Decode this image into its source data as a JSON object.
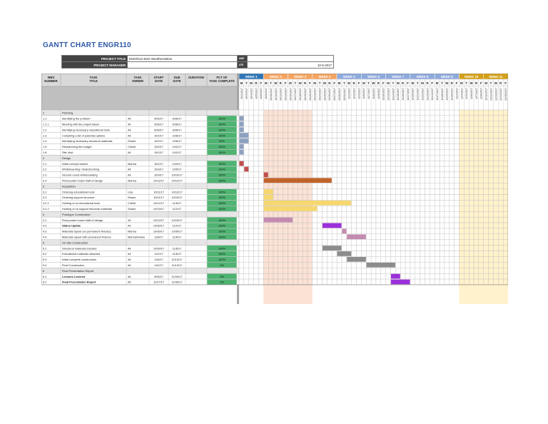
{
  "title": "GANTT CHART ENGR110",
  "project": {
    "title_label": "PROJECT TITLE",
    "title_value": "ENGR110 BoG Weatherstation",
    "manager_label": "PROJECT MANAGER",
    "manager_value": "",
    "right_label_1": "AME",
    "right_value_1": "",
    "right_label_2": "ATE",
    "right_value_2": "10-5-2017"
  },
  "columns": {
    "wbs": "WBS NUMBER",
    "task": "TASK TITLE",
    "owner": "TASK OWNER",
    "start": "START DATE",
    "due": "DUE DATE",
    "duration": "DURATION",
    "pct": "PCT OF TASK COMPLETE"
  },
  "weeks": [
    "WEEK 1",
    "WEEK 2",
    "WEEK 3",
    "WEEK 4",
    "WEEK 5",
    "WEEK 6",
    "WEEK 7",
    "WEEK 8",
    "WEEK 9",
    "WEEK 10",
    "WEEK 11"
  ],
  "week_colors": [
    "#2e75b6",
    "#f4a460",
    "#f4a460",
    "#f4a460",
    "#8faadc",
    "#8faadc",
    "#8faadc",
    "#8faadc",
    "#8faadc",
    "#d4a017",
    "#d4a017"
  ],
  "week_bgs": [
    "#ffffff",
    "#fbe2d5",
    "#fbe2d5",
    "#ffffff",
    "#ffffff",
    "#ffffff",
    "#ffffff",
    "#ffffff",
    "#ffffff",
    "#fff2cc",
    "#fff2cc"
  ],
  "day_letters": [
    "M",
    "T",
    "W",
    "R",
    "F"
  ],
  "day_dates": [
    "10/2/2017",
    "10/3/2017",
    "10/4/2017",
    "10/5/2017",
    "10/6/2017",
    "10/9/2017",
    "10/10/2017",
    "10/11/2017",
    "10/12/2017",
    "10/13/2017",
    "10/16/2017",
    "10/17/2017",
    "10/18/2017",
    "10/19/2017",
    "10/20/2017",
    "10/23/2017",
    "10/24/2017",
    "10/25/2017",
    "10/26/2017",
    "10/27/2017",
    "10/30/2017",
    "10/31/2017",
    "11/1/2017",
    "11/2/2017",
    "11/3/2017",
    "11/6/2017",
    "11/7/2017",
    "11/8/2017",
    "11/9/2017",
    "11/10/2017",
    "11/13/2017",
    "11/14/2017",
    "11/15/2017",
    "11/16/2017",
    "11/17/2017",
    "11/20/2017",
    "11/21/2017",
    "11/22/2017",
    "11/23/2017",
    "11/24/2017",
    "11/27/2017",
    "11/28/2017",
    "11/29/2017",
    "11/30/2017",
    "12/1/2017",
    "12/4/2017",
    "12/5/2017",
    "12/6/2017",
    "12/7/2017",
    "12/8/2017",
    "12/11/2017",
    "12/12/2017",
    "12/13/2017",
    "12/14/2017",
    "12/15/2017"
  ],
  "rows": [
    {
      "wbs": "1",
      "task": "Planning",
      "owner": "",
      "start": "",
      "due": "",
      "pct": "",
      "phase": true
    },
    {
      "wbs": "1.1",
      "task": "Identifying the problem",
      "owner": "All",
      "start": "9/26/17",
      "due": "9/26/17",
      "pct": "100%",
      "bar": {
        "start": 0,
        "len": 1,
        "color": "#8ea0c0"
      }
    },
    {
      "wbs": "1.1.1",
      "task": "Meeting with the project liason",
      "owner": "All",
      "start": "9/28/17",
      "due": "9/28/17",
      "pct": "100%",
      "bar": {
        "start": 0,
        "len": 1,
        "color": "#8ea0c0"
      }
    },
    {
      "wbs": "1.2",
      "task": "Identifying necessary educational tools",
      "owner": "All",
      "start": "9/28/17",
      "due": "9/28/17",
      "pct": "100%",
      "bar": {
        "start": 0,
        "len": 1,
        "color": "#8ea0c0"
      }
    },
    {
      "wbs": "1.3",
      "task": "Compiling a list of potential options",
      "owner": "All",
      "start": "10/2/17",
      "due": "10/6/17",
      "pct": "100%",
      "bar": {
        "start": 0,
        "len": 2,
        "color": "#8ea0c0"
      }
    },
    {
      "wbs": "1.4",
      "task": "Identifying necessary structural materials",
      "owner": "Shane",
      "start": "10/2/17",
      "due": "10/6/17",
      "pct": "50%",
      "bar": {
        "start": 0,
        "len": 2,
        "color": "#8ea0c0"
      }
    },
    {
      "wbs": "1.5",
      "task": "Researching the budget",
      "owner": "Christi",
      "start": "10/2/17",
      "due": "10/2/17",
      "pct": "100%",
      "bar": {
        "start": 0,
        "len": 1,
        "color": "#8ea0c0"
      }
    },
    {
      "wbs": "1.6",
      "task": "Site Visit",
      "owner": "All",
      "start": "10/2/17",
      "due": "10/2/17",
      "pct": "100%",
      "bar": {
        "start": 0,
        "len": 1,
        "color": "#8ea0c0"
      }
    },
    {
      "wbs": "2",
      "task": "Design",
      "owner": "",
      "start": "",
      "due": "",
      "pct": "",
      "phase": true
    },
    {
      "wbs": "2.1",
      "task": "Initial concept sketch",
      "owner": "Marina",
      "start": "10/2/17",
      "due": "10/3/17",
      "pct": "100%",
      "bar": {
        "start": 0,
        "len": 1,
        "color": "#c0504d"
      }
    },
    {
      "wbs": "2.2",
      "task": "Whiteboarding / Brainstorming",
      "owner": "All",
      "start": "10/3/17",
      "due": "10/5/17",
      "pct": "100%",
      "bar": {
        "start": 1,
        "len": 1,
        "color": "#c0504d"
      }
    },
    {
      "wbs": "2.3",
      "task": "Second round whiteboarding",
      "owner": "All",
      "start": "10/9/17",
      "due": "10/10/17",
      "pct": "100%",
      "bar": {
        "start": 5,
        "len": 1,
        "color": "#c0504d"
      }
    },
    {
      "wbs": "2.4",
      "task": "Final poster board draft of design",
      "owner": "Marina",
      "start": "10/12/17",
      "due": "10/12/17",
      "pct": "100%",
      "bar": {
        "start": 5,
        "len": 14,
        "color": "#c0632b"
      }
    },
    {
      "wbs": "3",
      "task": "Acquisition",
      "owner": "",
      "start": "",
      "due": "",
      "pct": "",
      "phase": true
    },
    {
      "wbs": "3.1",
      "task": "Ordering educational tools",
      "owner": "Lisa",
      "start": "10/11/17",
      "due": "10/12/17",
      "pct": "100%",
      "bar": {
        "start": 5,
        "len": 2,
        "color": "#f5d76e"
      }
    },
    {
      "wbs": "3.2",
      "task": "Ordering support structure",
      "owner": "Shane",
      "start": "10/11/17",
      "due": "10/19/17",
      "pct": "100%",
      "bar": {
        "start": 5,
        "len": 2,
        "color": "#f5d76e"
      }
    },
    {
      "wbs": "3.2.1",
      "task": "Holding on to educational tools",
      "owner": "Christi",
      "start": "10/12/17",
      "due": "11/6/17",
      "pct": "100%",
      "bar": {
        "start": 5,
        "len": 18,
        "color": "#f5d76e"
      }
    },
    {
      "wbs": "3.2.2",
      "task": "Holding on to support structure materials",
      "owner": "Shane",
      "start": "10/19/17",
      "due": "11/2/17",
      "pct": "100%",
      "bar": {
        "start": 5,
        "len": 11,
        "color": "#f5d76e"
      }
    },
    {
      "wbs": "4",
      "task": "Prototype Construction",
      "owner": "",
      "start": "",
      "due": "",
      "pct": "",
      "phase": true
    },
    {
      "wbs": "4.1",
      "task": "Final poster board draft of design",
      "owner": "All",
      "start": "10/12/17",
      "due": "10/19/17",
      "pct": "100%",
      "bar": {
        "start": 5,
        "len": 6,
        "color": "#c38bb0"
      }
    },
    {
      "wbs": "4.2",
      "task": "Status Update",
      "owner": "All",
      "start": "10/30/17",
      "due": "11/2/17",
      "pct": "100%",
      "bold": true,
      "bar": {
        "start": 17,
        "len": 4,
        "color": "#9b30d9"
      }
    },
    {
      "wbs": "4.3",
      "task": "Materials layout (no permanent fixtures)",
      "owner": "Marina",
      "start": "10/30/17",
      "due": "10/30/17",
      "pct": "100%",
      "bar": {
        "start": 21,
        "len": 1,
        "color": "#c38bb0"
      }
    },
    {
      "wbs": "4.4",
      "task": "Materials layout with permanent fixtures",
      "owner": "Marina/Shane",
      "start": "11/6/17",
      "due": "11/6/17",
      "pct": "100%",
      "bar": {
        "start": 22,
        "len": 4,
        "color": "#c38bb0"
      }
    },
    {
      "wbs": "5",
      "task": "On-Site Construction",
      "owner": "",
      "start": "",
      "due": "",
      "pct": "",
      "phase": true
    },
    {
      "wbs": "5.1",
      "task": "Structural materials inserted",
      "owner": "All",
      "start": "10/30/17",
      "due": "11/6/17",
      "pct": "100%",
      "bar": {
        "start": 17,
        "len": 4,
        "color": "#8c8c8c"
      }
    },
    {
      "wbs": "5.2",
      "task": "Educational materials attached",
      "owner": "All",
      "start": "11/2/17",
      "due": "11/6/17",
      "pct": "100%",
      "bar": {
        "start": 20,
        "len": 3,
        "color": "#8c8c8c"
      }
    },
    {
      "wbs": "5.3",
      "task": "Initial complete construction",
      "owner": "All",
      "start": "11/6/17",
      "due": "11/13/17",
      "pct": "100%",
      "bar": {
        "start": 22,
        "len": 4,
        "color": "#8c8c8c"
      }
    },
    {
      "wbs": "5.4",
      "task": "Final Construction",
      "owner": "All",
      "start": "11/2/17",
      "due": "11/13/17",
      "pct": "0%",
      "bar": {
        "start": 26,
        "len": 6,
        "color": "#8c8c8c"
      }
    },
    {
      "wbs": "6",
      "task": "Final Presentation Report",
      "owner": "",
      "start": "",
      "due": "",
      "pct": "",
      "phase": true
    },
    {
      "wbs": "6.1",
      "task": "Lessons Learned",
      "owner": "All",
      "start": "9/28/17",
      "due": "11/30/17",
      "pct": "0%",
      "bold": true,
      "bar": {
        "start": 31,
        "len": 2,
        "color": "#9b30d9"
      }
    },
    {
      "wbs": "6.2",
      "task": "Final Presentation Report",
      "owner": "All",
      "start": "11/27/17",
      "due": "11/30/17",
      "pct": "0%",
      "bold": true,
      "bar": {
        "start": 31,
        "len": 4,
        "color": "#9b30d9"
      }
    }
  ]
}
